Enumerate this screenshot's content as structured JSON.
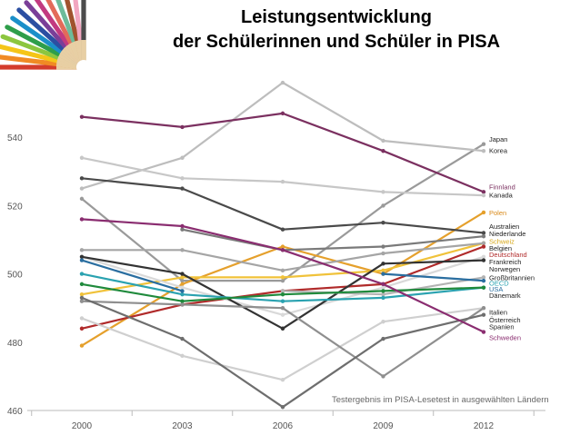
{
  "slide": {
    "title_line1": "Leistungsentwicklung",
    "title_line2": "der Schülerinnen und Schüler in PISA"
  },
  "chart_data": {
    "type": "line",
    "title": "Leistungsentwicklung der Schülerinnen und Schüler in PISA",
    "annotation": "Testergebnis im PISA-Lesetest in ausgewählten Ländern",
    "x": [
      "2000",
      "2003",
      "2006",
      "2009",
      "2012"
    ],
    "ylim": [
      460,
      560
    ],
    "yticks": [
      460,
      480,
      500,
      520,
      540
    ],
    "grid": false,
    "series": [
      {
        "name": "Japan",
        "color": "#9a9a9a",
        "values": [
          522,
          498,
          498,
          520,
          538
        ]
      },
      {
        "name": "Korea",
        "color": "#bdbdbd",
        "values": [
          525,
          534,
          556,
          539,
          536
        ]
      },
      {
        "name": "Finnland",
        "color": "#7b3060",
        "values": [
          546,
          543,
          547,
          536,
          524
        ]
      },
      {
        "name": "Kanada",
        "color": "#c7c7c7",
        "values": [
          534,
          528,
          527,
          524,
          523
        ]
      },
      {
        "name": "Polen",
        "color": "#e5a02c",
        "values": [
          479,
          497,
          508,
          500,
          518
        ]
      },
      {
        "name": "Australien",
        "color": "#4a4a4a",
        "values": [
          528,
          525,
          513,
          515,
          512
        ]
      },
      {
        "name": "Niederlande",
        "color": "#7a7a7a",
        "values": [
          null,
          513,
          507,
          508,
          511
        ]
      },
      {
        "name": "Schweiz",
        "color": "#f0c23a",
        "values": [
          494,
          499,
          499,
          501,
          509
        ]
      },
      {
        "name": "Belgien",
        "color": "#a5a5a5",
        "values": [
          507,
          507,
          501,
          506,
          509
        ]
      },
      {
        "name": "Deutschland",
        "color": "#b02a2a",
        "values": [
          484,
          491,
          495,
          497,
          508
        ]
      },
      {
        "name": "Frankreich",
        "color": "#d9d9d9",
        "values": [
          505,
          496,
          488,
          496,
          505
        ]
      },
      {
        "name": "Norwegen",
        "color": "#333333",
        "values": [
          505,
          500,
          484,
          503,
          504
        ]
      },
      {
        "name": "Großbritannien",
        "color": "#b3b3b3",
        "values": [
          null,
          null,
          495,
          494,
          499
        ]
      },
      {
        "name": "OECD",
        "color": "#2aa2b0",
        "values": [
          500,
          494,
          492,
          493,
          496
        ]
      },
      {
        "name": "USA",
        "color": "#2a6ea0",
        "values": [
          504,
          495,
          null,
          500,
          498
        ]
      },
      {
        "name": "Dänemark",
        "color": "#1f8a3c",
        "values": [
          497,
          492,
          494,
          495,
          496
        ]
      },
      {
        "name": "Italien",
        "color": "#cfcfcf",
        "values": [
          487,
          476,
          469,
          486,
          490
        ]
      },
      {
        "name": "Österreich",
        "color": "#8f8f8f",
        "values": [
          492,
          491,
          490,
          470,
          490
        ]
      },
      {
        "name": "Spanien",
        "color": "#6e6e6e",
        "values": [
          493,
          481,
          461,
          481,
          488
        ]
      },
      {
        "name": "Schweden",
        "color": "#8a2d70",
        "values": [
          516,
          514,
          507,
          497,
          483
        ]
      }
    ],
    "end_labels": [
      {
        "text": "Japan",
        "color": "#222222",
        "y": 539.5
      },
      {
        "text": "Korea",
        "color": "#222222",
        "y": 536.2
      },
      {
        "text": "Finnland",
        "color": "#7b3060",
        "y": 525.5
      },
      {
        "text": "Kanada",
        "color": "#222222",
        "y": 523.2
      },
      {
        "text": "Polen",
        "color": "#d98a1a",
        "y": 518
      },
      {
        "text": "Australien",
        "color": "#222222",
        "y": 514
      },
      {
        "text": "Niederlande",
        "color": "#222222",
        "y": 511.8
      },
      {
        "text": "Schweiz",
        "color": "#d9a81a",
        "y": 509.6
      },
      {
        "text": "Belgien",
        "color": "#222222",
        "y": 507.6
      },
      {
        "text": "Deutschland",
        "color": "#b02a2a",
        "y": 505.8
      },
      {
        "text": "Frankreich",
        "color": "#222222",
        "y": 503.6
      },
      {
        "text": "Norwegen",
        "color": "#222222",
        "y": 501.5
      },
      {
        "text": "Großbritannien",
        "color": "#222222",
        "y": 499
      },
      {
        "text": "OECD",
        "color": "#2aa2b0",
        "y": 497.4
      },
      {
        "text": "USA",
        "color": "#2a6ea0",
        "y": 495.6
      },
      {
        "text": "Dänemark",
        "color": "#222222",
        "y": 493.8
      },
      {
        "text": "Italien",
        "color": "#222222",
        "y": 488.8
      },
      {
        "text": "Österreich",
        "color": "#222222",
        "y": 486.6
      },
      {
        "text": "Spanien",
        "color": "#222222",
        "y": 484.6
      },
      {
        "text": "Schweden",
        "color": "#8a2d70",
        "y": 481.4
      }
    ]
  }
}
